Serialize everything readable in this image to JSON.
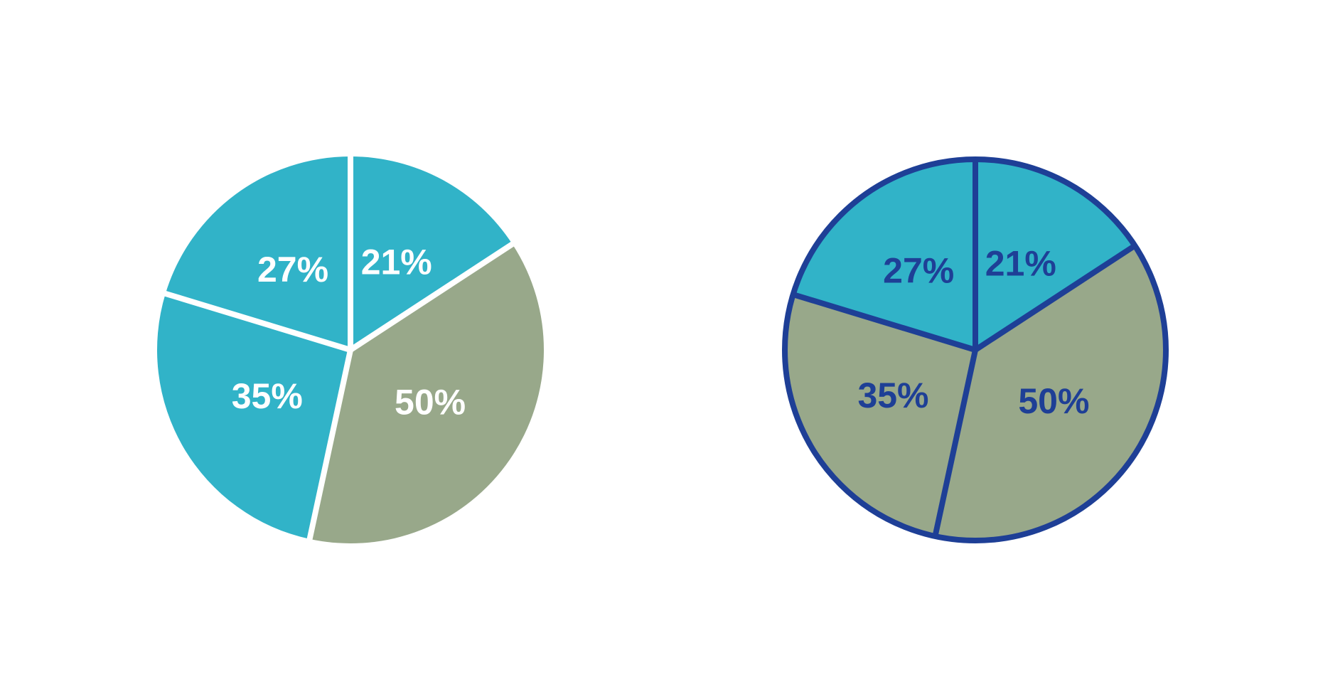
{
  "chart_data": [
    {
      "type": "pie",
      "values": [
        21,
        50,
        35,
        27
      ],
      "value_labels": [
        "21%",
        "50%",
        "35%",
        "27%"
      ],
      "colors": [
        "#31b3c8",
        "#98a88a",
        "#31b3c8",
        "#31b3c8"
      ],
      "stroke_color": "#ffffff",
      "label_color": "#ffffff"
    },
    {
      "type": "pie",
      "values": [
        21,
        50,
        35,
        27
      ],
      "value_labels": [
        "21%",
        "50%",
        "35%",
        "27%"
      ],
      "colors": [
        "#31b3c8",
        "#98a88a",
        "#98a88a",
        "#31b3c8"
      ],
      "stroke_color": "#1e3f96",
      "label_color": "#1e3f96"
    }
  ]
}
